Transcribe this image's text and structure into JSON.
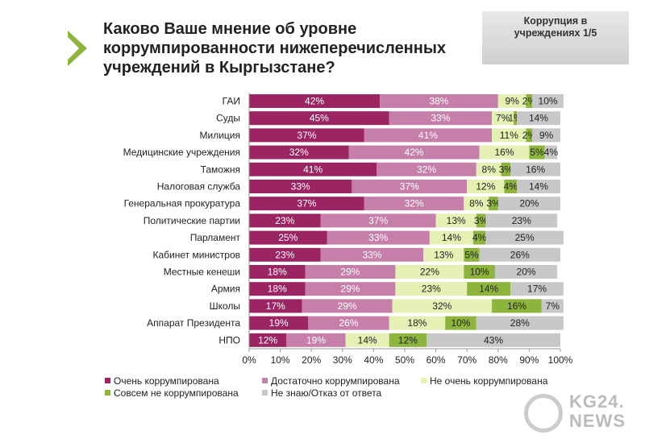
{
  "header": {
    "title": "Каково Ваше мнение об уровне коррумпированности нижеперечисленных учреждений в Кыргызстане?",
    "badge": "Коррупция в учреждениях 1/5"
  },
  "logo": {
    "line1": "KG24.",
    "line2": "NEWS"
  },
  "chart_data": {
    "type": "bar",
    "orientation": "horizontal",
    "stacked": true,
    "categories": [
      "ГАИ",
      "Суды",
      "Милиция",
      "Медицинские учреждения",
      "Таможня",
      "Налоговая служба",
      "Генеральная прокуратура",
      "Политические партии",
      "Парламент",
      "Кабинет министров",
      "Местные кенеши",
      "Армия",
      "Школы",
      "Аппарат Президента",
      "НПО"
    ],
    "series": [
      {
        "name": "Очень коррумпирована",
        "color": "#9b2463",
        "text_color": "#ffffff",
        "values": [
          42,
          45,
          37,
          32,
          41,
          33,
          37,
          23,
          25,
          23,
          18,
          18,
          17,
          19,
          12
        ]
      },
      {
        "name": "Достаточно коррумпирована",
        "color": "#c57fa8",
        "text_color": "#ffffff",
        "values": [
          38,
          33,
          41,
          42,
          32,
          37,
          32,
          37,
          33,
          33,
          29,
          29,
          29,
          26,
          19
        ]
      },
      {
        "name": "Не очень коррумпирована",
        "color": "#e4f0b4",
        "text_color": "#222222",
        "values": [
          9,
          7,
          11,
          16,
          8,
          12,
          8,
          13,
          14,
          13,
          22,
          23,
          32,
          18,
          14
        ]
      },
      {
        "name": "Совсем не коррумпирована",
        "color": "#8db43c",
        "text_color": "#222222",
        "values": [
          2,
          1,
          2,
          5,
          3,
          4,
          3,
          3,
          4,
          5,
          10,
          14,
          16,
          10,
          12
        ]
      },
      {
        "name": "Не знаю/Отказ от ответа",
        "color": "#c8c8c8",
        "text_color": "#222222",
        "values": [
          10,
          14,
          9,
          4,
          16,
          14,
          20,
          23,
          25,
          26,
          20,
          17,
          7,
          28,
          43
        ]
      }
    ],
    "xticks": [
      "0%",
      "10%",
      "20%",
      "30%",
      "40%",
      "50%",
      "60%",
      "70%",
      "80%",
      "90%",
      "100%"
    ],
    "xlim": [
      0,
      100
    ],
    "legend": "bottom",
    "grid": false
  }
}
